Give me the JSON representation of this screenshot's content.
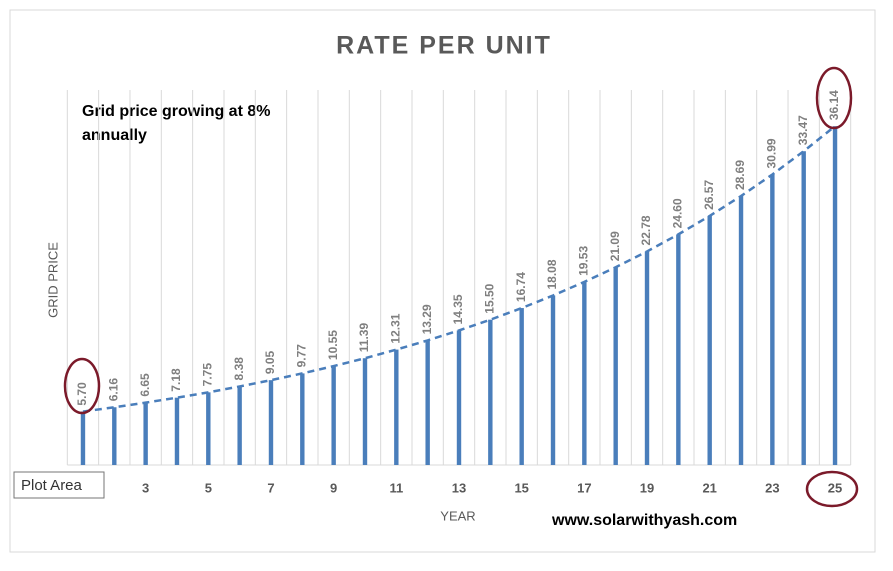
{
  "chart_data": {
    "type": "bar",
    "title": "RATE PER UNIT",
    "annotations": [
      "Grid price growing at 8% annually",
      "www.solarwithyash.com",
      "Plot Area"
    ],
    "x_label": "YEAR",
    "y_label": "GRID PRICE",
    "categories": [
      null,
      null,
      "3",
      null,
      "5",
      null,
      "7",
      null,
      "9",
      null,
      "11",
      null,
      "13",
      null,
      "15",
      null,
      "17",
      null,
      "19",
      null,
      "21",
      null,
      "23",
      null,
      "25"
    ],
    "values": [
      5.7,
      6.16,
      6.65,
      7.18,
      7.75,
      8.38,
      9.05,
      9.77,
      10.55,
      11.39,
      12.31,
      13.29,
      14.35,
      15.5,
      16.74,
      18.08,
      19.53,
      21.09,
      22.78,
      24.6,
      26.57,
      28.69,
      30.99,
      33.47,
      36.14
    ],
    "value_labels": [
      "5.70",
      "6.16",
      "6.65",
      "7.18",
      "7.75",
      "8.38",
      "9.05",
      "9.77",
      "10.55",
      "11.39",
      "12.31",
      "13.29",
      "14.35",
      "15.50",
      "16.74",
      "18.08",
      "19.53",
      "21.09",
      "22.78",
      "24.60",
      "26.57",
      "28.69",
      "30.99",
      "33.47",
      "36.14"
    ],
    "color": "#4a7ebb",
    "trendline": true,
    "ylim": [
      0,
      40
    ],
    "grid": true
  }
}
